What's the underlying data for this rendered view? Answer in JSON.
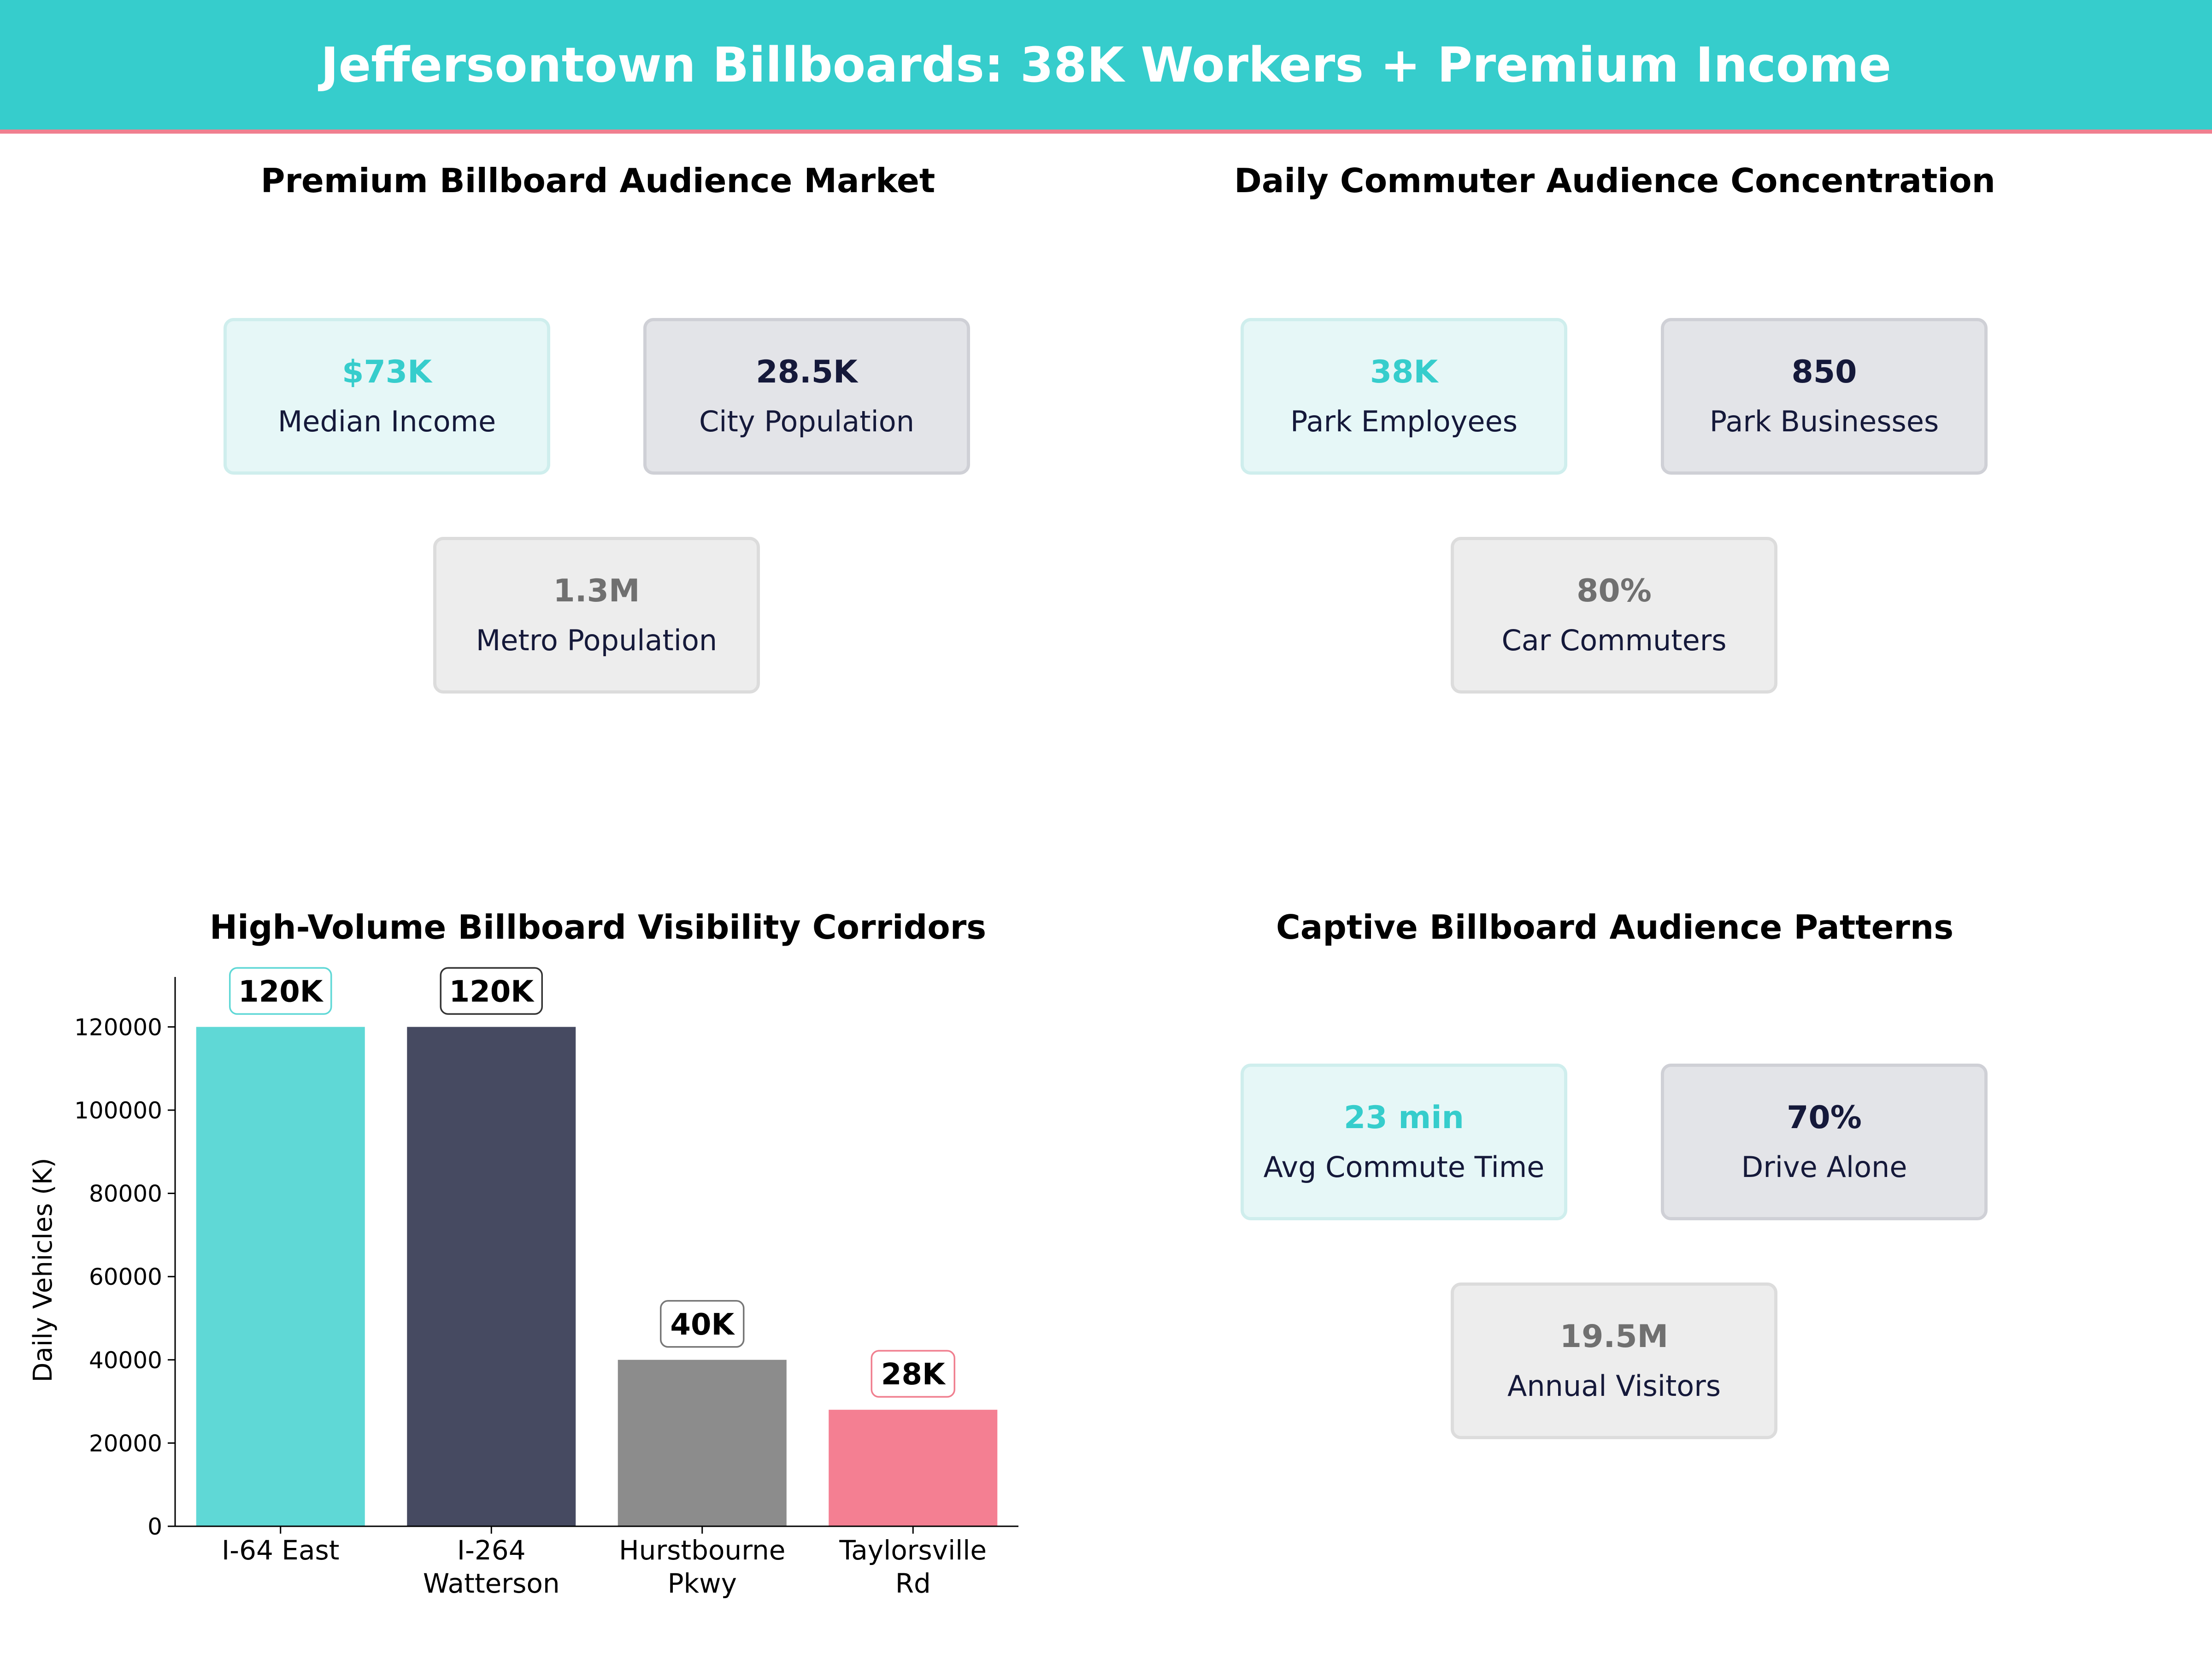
{
  "header": {
    "title": "Jeffersontown Billboards: 38K Workers + Premium Income"
  },
  "panels": {
    "audience_market": {
      "title": "Premium Billboard Audience Market",
      "cards": [
        {
          "value": "$73K",
          "label": "Median Income",
          "style": "teal"
        },
        {
          "value": "28.5K",
          "label": "City Population",
          "style": "navy"
        },
        {
          "value": "1.3M",
          "label": "Metro Population",
          "style": "gray"
        }
      ]
    },
    "commuter_concentration": {
      "title": "Daily Commuter Audience Concentration",
      "cards": [
        {
          "value": "38K",
          "label": "Park Employees",
          "style": "teal"
        },
        {
          "value": "850",
          "label": "Park Businesses",
          "style": "navy"
        },
        {
          "value": "80%",
          "label": "Car Commuters",
          "style": "gray"
        }
      ]
    },
    "audience_patterns": {
      "title": "Captive Billboard Audience Patterns",
      "cards": [
        {
          "value": "23 min",
          "label": "Avg Commute Time",
          "style": "teal"
        },
        {
          "value": "70%",
          "label": "Drive Alone",
          "style": "navy"
        },
        {
          "value": "19.5M",
          "label": "Annual Visitors",
          "style": "gray"
        }
      ]
    }
  },
  "colors": {
    "teal": "#36cdcc",
    "navy": "#15193a",
    "gray": "#707070",
    "pink": "#f07f8f"
  },
  "chart_data": {
    "type": "bar",
    "title": "High-Volume Billboard Visibility Corridors",
    "categories": [
      "I-64 East",
      "I-264 Watterson",
      "Hurstbourne Pkwy",
      "Taylorsville Rd"
    ],
    "category_lines": [
      [
        "I-64 East"
      ],
      [
        "I-264",
        "Watterson"
      ],
      [
        "Hurstbourne",
        "Pkwy"
      ],
      [
        "Taylorsville",
        "Rd"
      ]
    ],
    "values": [
      120000,
      120000,
      40000,
      28000
    ],
    "value_labels": [
      "120K",
      "120K",
      "40K",
      "28K"
    ],
    "bar_colors": [
      "#5fd8d6",
      "#464a61",
      "#8c8c8c",
      "#f47f92"
    ],
    "label_border_colors": [
      "#5fd8d6",
      "#333333",
      "#777777",
      "#f07f8f"
    ],
    "xlabel": "",
    "ylabel": "Daily Vehicles (K)",
    "yticks": [
      0,
      20000,
      40000,
      60000,
      80000,
      100000,
      120000
    ],
    "ylim": [
      0,
      132000
    ],
    "grid": false
  }
}
